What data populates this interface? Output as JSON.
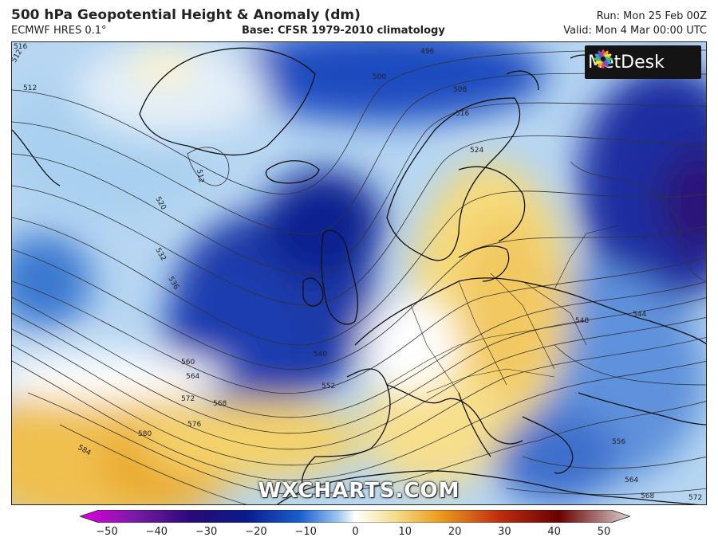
{
  "header": {
    "title": "500 hPa Geopotential Height & Anomaly (dm)",
    "model": "ECMWF HRES 0.1°",
    "base": "Base: CFSR 1979-2010 climatology",
    "run": "Run: Mon 25 Feb 00Z",
    "valid": "Valid: Mon 4 Mar 00:00 UTC"
  },
  "brand": {
    "logo_text": "MetDesk",
    "watermark": "WXCHARTS.COM"
  },
  "colorbar": {
    "ticks": [
      "−50",
      "−40",
      "−30",
      "−20",
      "−10",
      "0",
      "10",
      "20",
      "30",
      "40",
      "50"
    ],
    "colors": [
      "#e000e0",
      "#7a1aa8",
      "#2a0a78",
      "#0a1a8a",
      "#1a5ed0",
      "#9ec8ee",
      "#ffffff",
      "#f4e090",
      "#eca020",
      "#c03010",
      "#6a0000",
      "#d8d0d0"
    ]
  },
  "contour_labels": [
    "496",
    "500",
    "508",
    "512",
    "516",
    "520",
    "524",
    "532",
    "536",
    "540",
    "544",
    "548",
    "552",
    "556",
    "560",
    "564",
    "568",
    "572",
    "576",
    "580",
    "584"
  ]
}
